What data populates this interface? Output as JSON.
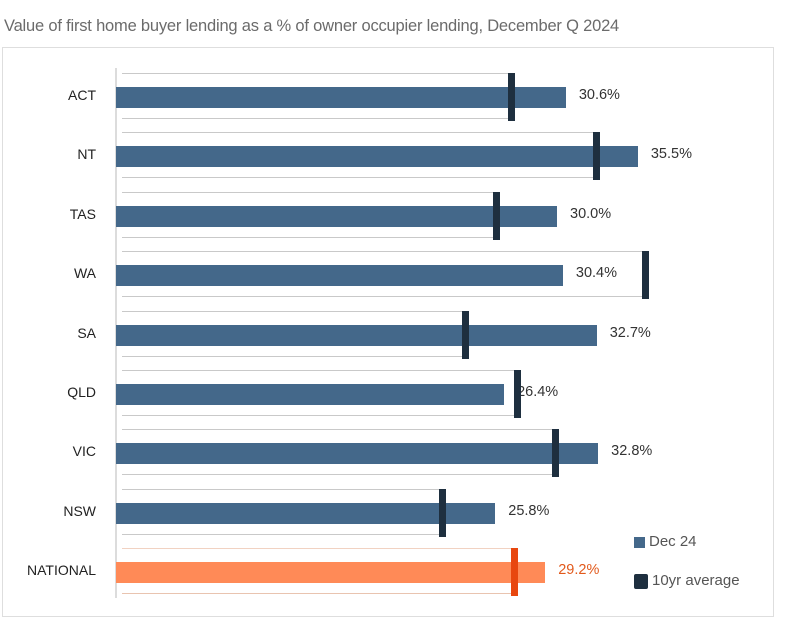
{
  "chart_data": {
    "type": "bar",
    "orientation": "horizontal",
    "title": "Value of first home buyer lending as a % of owner occupier lending, December Q 2024",
    "xlabel": "",
    "ylabel": "",
    "xlim": [
      0,
      40
    ],
    "grid": false,
    "legend_position": "bottom-right",
    "categories": [
      "ACT",
      "NT",
      "TAS",
      "WA",
      "SA",
      "QLD",
      "VIC",
      "NSW",
      "NATIONAL"
    ],
    "series": [
      {
        "name": "Dec 24",
        "kind": "bar",
        "values": [
          30.6,
          35.5,
          30.0,
          30.4,
          32.7,
          26.4,
          32.8,
          25.8,
          29.2
        ],
        "labels": [
          "30.6%",
          "35.5%",
          "30.0%",
          "30.4%",
          "32.7%",
          "26.4%",
          "32.8%",
          "25.8%",
          "29.2%"
        ]
      },
      {
        "name": "10yr average",
        "kind": "marker",
        "values": [
          26.9,
          32.7,
          25.9,
          36.0,
          23.8,
          27.3,
          29.9,
          22.2,
          27.1
        ]
      }
    ],
    "highlight_category": "NATIONAL"
  },
  "colors": {
    "bar": "#44688a",
    "marker": "#1e2f3f",
    "national_bar": "#ff8a57",
    "national_marker": "#e8470f",
    "national_label": "#e25a1c",
    "label": "#333333"
  },
  "legend": {
    "items": [
      {
        "label": "Dec 24",
        "color": "#44688a"
      },
      {
        "label": "10yr average",
        "color": "#1e2f3f"
      }
    ]
  }
}
